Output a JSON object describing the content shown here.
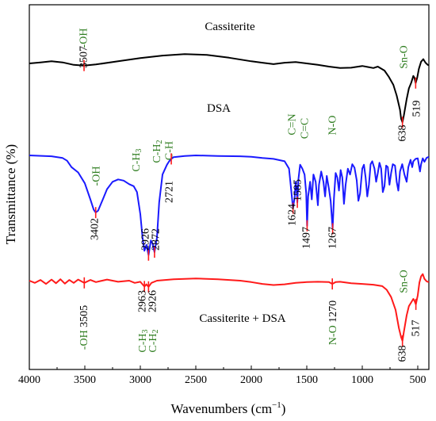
{
  "chart_data": {
    "type": "line",
    "xlabel": "Wavenumbers (cm",
    "xlabel_sup": "−1",
    "xlabel_close": ")",
    "ylabel": "Transmittance (%)",
    "x_reversed": true,
    "xlim": [
      4000,
      400
    ],
    "x_ticks": [
      4000,
      3500,
      3000,
      2500,
      2000,
      1500,
      1000,
      500
    ],
    "grid": false,
    "colors": {
      "green": "#2e7d1f",
      "axis": "#000000"
    },
    "series": [
      {
        "name": "Cassiterite",
        "color": "#000000",
        "baseline": 0.0,
        "points": [
          [
            4000,
            0.0
          ],
          [
            3900,
            -0.3
          ],
          [
            3800,
            -0.6
          ],
          [
            3700,
            -0.3
          ],
          [
            3600,
            0.4
          ],
          [
            3507,
            0.6
          ],
          [
            3400,
            0.3
          ],
          [
            3200,
            -0.6
          ],
          [
            3000,
            -1.5
          ],
          [
            2800,
            -2.2
          ],
          [
            2600,
            -2.6
          ],
          [
            2400,
            -2.4
          ],
          [
            2200,
            -1.6
          ],
          [
            2000,
            -0.6
          ],
          [
            1900,
            -0.2
          ],
          [
            1800,
            0.2
          ],
          [
            1700,
            -0.2
          ],
          [
            1600,
            -0.4
          ],
          [
            1500,
            0.0
          ],
          [
            1400,
            0.4
          ],
          [
            1300,
            0.9
          ],
          [
            1200,
            1.3
          ],
          [
            1100,
            1.2
          ],
          [
            1000,
            0.7
          ],
          [
            950,
            1.0
          ],
          [
            900,
            1.3
          ],
          [
            860,
            0.9
          ],
          [
            800,
            2.0
          ],
          [
            760,
            3.8
          ],
          [
            720,
            6.0
          ],
          [
            690,
            9.0
          ],
          [
            660,
            13.0
          ],
          [
            650,
            15.5
          ],
          [
            638,
            16.5
          ],
          [
            625,
            14.5
          ],
          [
            600,
            10.0
          ],
          [
            580,
            7.0
          ],
          [
            560,
            5.5
          ],
          [
            540,
            3.5
          ],
          [
            530,
            4.0
          ],
          [
            519,
            5.5
          ],
          [
            505,
            4.0
          ],
          [
            490,
            1.5
          ],
          [
            470,
            -0.5
          ],
          [
            450,
            -1.2
          ],
          [
            430,
            -0.2
          ],
          [
            410,
            0.4
          ],
          [
            400,
            0.5
          ]
        ],
        "labels": [
          {
            "value": "3507",
            "x": 3507,
            "color": "black"
          },
          {
            "value": "-OH",
            "x": 3507,
            "color": "green"
          },
          {
            "value": "Sn-O",
            "x": 530,
            "color": "green"
          },
          {
            "value": "638",
            "x": 638,
            "color": "black"
          },
          {
            "value": "519",
            "x": 519,
            "color": "black"
          }
        ],
        "title": "Cassiterite"
      },
      {
        "name": "DSA",
        "color": "#1a1aff",
        "baseline": 0.0,
        "points": [
          [
            4000,
            0.0
          ],
          [
            3800,
            0.3
          ],
          [
            3700,
            0.9
          ],
          [
            3660,
            1.8
          ],
          [
            3620,
            4.0
          ],
          [
            3560,
            5.8
          ],
          [
            3500,
            9.5
          ],
          [
            3450,
            15.0
          ],
          [
            3420,
            18.5
          ],
          [
            3402,
            19.5
          ],
          [
            3380,
            18.8
          ],
          [
            3340,
            15.2
          ],
          [
            3300,
            11.5
          ],
          [
            3250,
            9.0
          ],
          [
            3200,
            8.2
          ],
          [
            3150,
            8.6
          ],
          [
            3100,
            9.8
          ],
          [
            3060,
            10.5
          ],
          [
            3030,
            12.5
          ],
          [
            3000,
            20.0
          ],
          [
            2980,
            28.0
          ],
          [
            2963,
            32.5
          ],
          [
            2945,
            30.5
          ],
          [
            2926,
            34.0
          ],
          [
            2905,
            29.0
          ],
          [
            2890,
            30.0
          ],
          [
            2872,
            33.0
          ],
          [
            2850,
            28.0
          ],
          [
            2830,
            16.0
          ],
          [
            2800,
            6.5
          ],
          [
            2760,
            3.2
          ],
          [
            2740,
            2.0
          ],
          [
            2721,
            1.2
          ],
          [
            2700,
            0.6
          ],
          [
            2600,
            0.2
          ],
          [
            2500,
            0.0
          ],
          [
            2300,
            0.2
          ],
          [
            2100,
            0.3
          ],
          [
            2000,
            0.5
          ],
          [
            1900,
            0.9
          ],
          [
            1800,
            1.2
          ],
          [
            1700,
            2.0
          ],
          [
            1660,
            4.5
          ],
          [
            1640,
            12.0
          ],
          [
            1624,
            18.0
          ],
          [
            1610,
            14.5
          ],
          [
            1600,
            9.0
          ],
          [
            1592,
            11.0
          ],
          [
            1585,
            16.0
          ],
          [
            1575,
            8.0
          ],
          [
            1560,
            3.2
          ],
          [
            1540,
            4.5
          ],
          [
            1520,
            6.5
          ],
          [
            1505,
            13.0
          ],
          [
            1497,
            24.0
          ],
          [
            1488,
            14.0
          ],
          [
            1470,
            9.0
          ],
          [
            1455,
            15.0
          ],
          [
            1440,
            6.5
          ],
          [
            1420,
            9.0
          ],
          [
            1400,
            17.0
          ],
          [
            1390,
            10.0
          ],
          [
            1370,
            5.5
          ],
          [
            1350,
            9.0
          ],
          [
            1335,
            14.0
          ],
          [
            1320,
            7.0
          ],
          [
            1300,
            11.5
          ],
          [
            1285,
            15.5
          ],
          [
            1267,
            25.0
          ],
          [
            1255,
            14.5
          ],
          [
            1240,
            6.0
          ],
          [
            1225,
            7.5
          ],
          [
            1210,
            12.0
          ],
          [
            1195,
            5.0
          ],
          [
            1180,
            7.5
          ],
          [
            1165,
            16.5
          ],
          [
            1150,
            10.0
          ],
          [
            1130,
            4.5
          ],
          [
            1110,
            6.5
          ],
          [
            1090,
            3.0
          ],
          [
            1070,
            4.2
          ],
          [
            1050,
            8.5
          ],
          [
            1035,
            15.5
          ],
          [
            1020,
            13.0
          ],
          [
            1000,
            4.5
          ],
          [
            985,
            3.2
          ],
          [
            970,
            7.5
          ],
          [
            955,
            14.0
          ],
          [
            940,
            10.0
          ],
          [
            925,
            3.0
          ],
          [
            910,
            2.0
          ],
          [
            890,
            4.5
          ],
          [
            875,
            9.0
          ],
          [
            860,
            6.0
          ],
          [
            845,
            2.5
          ],
          [
            830,
            4.5
          ],
          [
            815,
            12.5
          ],
          [
            800,
            10.5
          ],
          [
            785,
            3.5
          ],
          [
            770,
            4.0
          ],
          [
            755,
            10.0
          ],
          [
            740,
            6.0
          ],
          [
            725,
            3.0
          ],
          [
            705,
            3.5
          ],
          [
            690,
            9.0
          ],
          [
            675,
            12.0
          ],
          [
            660,
            5.5
          ],
          [
            640,
            3.0
          ],
          [
            620,
            6.5
          ],
          [
            600,
            9.0
          ],
          [
            585,
            4.0
          ],
          [
            565,
            1.5
          ],
          [
            550,
            4.0
          ],
          [
            540,
            2.0
          ],
          [
            520,
            1.2
          ],
          [
            500,
            1.0
          ],
          [
            480,
            5.5
          ],
          [
            470,
            3.0
          ],
          [
            455,
            1.0
          ],
          [
            440,
            2.2
          ],
          [
            420,
            0.8
          ],
          [
            400,
            0.5
          ]
        ],
        "labels": [
          {
            "value": "-OH",
            "x": 3402,
            "color": "green"
          },
          {
            "value": "3402",
            "x": 3402,
            "color": "black"
          },
          {
            "value": "C-H3",
            "x": 2963,
            "color": "green"
          },
          {
            "value": "C-H2",
            "x": 2926,
            "color": "green"
          },
          {
            "value": "C-H",
            "x": 2721,
            "color": "green"
          },
          {
            "value": "2926",
            "x": 2926,
            "color": "black"
          },
          {
            "value": "2872",
            "x": 2872,
            "color": "black"
          },
          {
            "value": "2721",
            "x": 2721,
            "color": "black"
          },
          {
            "value": "C=N",
            "x": 1624,
            "color": "green"
          },
          {
            "value": "C=C",
            "x": 1497,
            "color": "green"
          },
          {
            "value": "N-O",
            "x": 1267,
            "color": "green"
          },
          {
            "value": "1624",
            "x": 1624,
            "color": "black"
          },
          {
            "value": "1585",
            "x": 1585,
            "color": "black"
          },
          {
            "value": "1497",
            "x": 1497,
            "color": "black"
          },
          {
            "value": "1267",
            "x": 1267,
            "color": "black"
          }
        ],
        "title": "DSA"
      },
      {
        "name": "Cassiterite + DSA",
        "color": "#ff1a1a",
        "baseline": 0.0,
        "points": [
          [
            4000,
            0.0
          ],
          [
            3950,
            0.6
          ],
          [
            3900,
            -0.2
          ],
          [
            3850,
            0.9
          ],
          [
            3800,
            -0.3
          ],
          [
            3760,
            0.7
          ],
          [
            3720,
            -0.4
          ],
          [
            3680,
            0.8
          ],
          [
            3640,
            -0.2
          ],
          [
            3600,
            0.6
          ],
          [
            3560,
            -0.3
          ],
          [
            3505,
            0.6
          ],
          [
            3450,
            -0.2
          ],
          [
            3400,
            0.4
          ],
          [
            3300,
            -0.3
          ],
          [
            3200,
            0.3
          ],
          [
            3100,
            0.0
          ],
          [
            3050,
            0.6
          ],
          [
            3000,
            0.3
          ],
          [
            2980,
            1.0
          ],
          [
            2963,
            1.6
          ],
          [
            2945,
            1.0
          ],
          [
            2926,
            1.7
          ],
          [
            2900,
            0.6
          ],
          [
            2850,
            0.0
          ],
          [
            2700,
            -0.4
          ],
          [
            2500,
            -0.6
          ],
          [
            2300,
            -0.4
          ],
          [
            2100,
            0.0
          ],
          [
            2000,
            0.4
          ],
          [
            1900,
            0.9
          ],
          [
            1800,
            1.2
          ],
          [
            1700,
            1.0
          ],
          [
            1600,
            0.6
          ],
          [
            1500,
            0.4
          ],
          [
            1400,
            0.3
          ],
          [
            1300,
            0.4
          ],
          [
            1270,
            0.9
          ],
          [
            1240,
            0.4
          ],
          [
            1200,
            0.3
          ],
          [
            1100,
            0.7
          ],
          [
            1000,
            0.9
          ],
          [
            900,
            1.1
          ],
          [
            820,
            1.5
          ],
          [
            780,
            2.5
          ],
          [
            740,
            4.5
          ],
          [
            700,
            8.0
          ],
          [
            670,
            13.0
          ],
          [
            650,
            15.5
          ],
          [
            638,
            16.5
          ],
          [
            625,
            14.0
          ],
          [
            600,
            9.5
          ],
          [
            580,
            7.0
          ],
          [
            560,
            6.0
          ],
          [
            540,
            5.0
          ],
          [
            530,
            5.5
          ],
          [
            517,
            6.5
          ],
          [
            500,
            4.0
          ],
          [
            485,
            0.5
          ],
          [
            470,
            -1.2
          ],
          [
            455,
            -1.8
          ],
          [
            440,
            -0.5
          ],
          [
            420,
            0.2
          ],
          [
            400,
            0.4
          ]
        ],
        "labels": [
          {
            "value": "-OH 3505",
            "x": 3505,
            "color": "mixed"
          },
          {
            "value": "2963",
            "x": 2963,
            "color": "black"
          },
          {
            "value": "2926",
            "x": 2926,
            "color": "black"
          },
          {
            "value": "C-H3",
            "x": 2963,
            "color": "green"
          },
          {
            "value": "C-H2",
            "x": 2926,
            "color": "green"
          },
          {
            "value": "N-O 1270",
            "x": 1270,
            "color": "mixed"
          },
          {
            "value": "Sn-O",
            "x": 540,
            "color": "green"
          },
          {
            "value": "638",
            "x": 638,
            "color": "black"
          },
          {
            "value": "517",
            "x": 517,
            "color": "black"
          }
        ],
        "title": "Cassiterite + DSA"
      }
    ]
  }
}
